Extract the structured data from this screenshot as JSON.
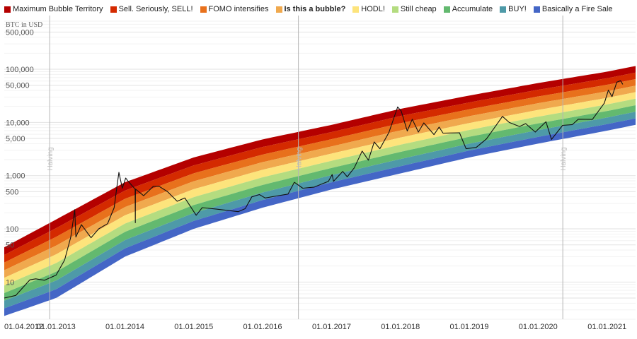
{
  "chart_data": {
    "type": "area",
    "ylabel": "BTC in USD",
    "y_scale": "log",
    "ylim": [
      2,
      800000
    ],
    "xlim": [
      "2012-04-01",
      "2021-06-01"
    ],
    "grid": true,
    "legend_position": "top",
    "bold_legend_entry": "Is this a bubble?",
    "y_ticks": [
      {
        "value": 500000,
        "label": "500,000"
      },
      {
        "value": 100000,
        "label": "100,000"
      },
      {
        "value": 50000,
        "label": "50,000"
      },
      {
        "value": 10000,
        "label": "10,000"
      },
      {
        "value": 5000,
        "label": "5,000"
      },
      {
        "value": 1000,
        "label": "1,000"
      },
      {
        "value": 500,
        "label": "500"
      },
      {
        "value": 100,
        "label": "100"
      },
      {
        "value": 50,
        "label": "50"
      },
      {
        "value": 10,
        "label": "10"
      }
    ],
    "x_ticks": [
      {
        "date": "2012-04-01",
        "label": "01.04.2012"
      },
      {
        "date": "2013-01-01",
        "label": "01.01.2013"
      },
      {
        "date": "2014-01-01",
        "label": "01.01.2014"
      },
      {
        "date": "2015-01-01",
        "label": "01.01.2015"
      },
      {
        "date": "2016-01-01",
        "label": "01.01.2016"
      },
      {
        "date": "2017-01-01",
        "label": "01.01.2017"
      },
      {
        "date": "2018-01-01",
        "label": "01.01.2018"
      },
      {
        "date": "2019-01-01",
        "label": "01.01.2019"
      },
      {
        "date": "2020-01-01",
        "label": "01.01.2020"
      },
      {
        "date": "2021-01-01",
        "label": "01.01.2021"
      }
    ],
    "halvings": [
      {
        "date": "2012-11-28",
        "label": "Halving"
      },
      {
        "date": "2016-07-09",
        "label": "Halving"
      },
      {
        "date": "2020-05-11",
        "label": "Halving"
      }
    ],
    "bands": [
      {
        "name": "Maximum Bubble Territory",
        "color": "#b40000"
      },
      {
        "name": "Sell. Seriously, SELL!",
        "color": "#d42a00"
      },
      {
        "name": "FOMO intensifies",
        "color": "#e8711c"
      },
      {
        "name": "Is this a bubble?",
        "color": "#f0a94e"
      },
      {
        "name": "HODL!",
        "color": "#fde47c"
      },
      {
        "name": "Still cheap",
        "color": "#b4dc80"
      },
      {
        "name": "Accumulate",
        "color": "#63b96f"
      },
      {
        "name": "BUY!",
        "color": "#4e9aa8"
      },
      {
        "name": "Basically a Fire Sale",
        "color": "#4466c6"
      }
    ],
    "band_bottom": [
      [
        "2012-04-01",
        2.3
      ],
      [
        "2013-01-01",
        5
      ],
      [
        "2014-01-01",
        30
      ],
      [
        "2015-01-01",
        100
      ],
      [
        "2016-01-01",
        250
      ],
      [
        "2017-01-01",
        550
      ],
      [
        "2018-01-01",
        1100
      ],
      [
        "2019-01-01",
        2200
      ],
      [
        "2020-01-01",
        4000
      ],
      [
        "2021-01-01",
        7000
      ],
      [
        "2021-06-01",
        9000
      ]
    ],
    "band_top": [
      [
        "2012-04-01",
        45
      ],
      [
        "2013-01-01",
        150
      ],
      [
        "2014-01-01",
        750
      ],
      [
        "2015-01-01",
        2200
      ],
      [
        "2016-01-01",
        4800
      ],
      [
        "2017-01-01",
        9000
      ],
      [
        "2018-01-01",
        18000
      ],
      [
        "2019-01-01",
        32000
      ],
      [
        "2020-01-01",
        55000
      ],
      [
        "2021-01-01",
        90000
      ],
      [
        "2021-06-01",
        115000
      ]
    ],
    "series": [
      {
        "name": "BTC",
        "color": "#111111",
        "points": [
          [
            "2012-04-01",
            5
          ],
          [
            "2012-06-01",
            5.6
          ],
          [
            "2012-08-15",
            11
          ],
          [
            "2012-09-15",
            11.5
          ],
          [
            "2012-11-01",
            10.8
          ],
          [
            "2013-01-01",
            13.5
          ],
          [
            "2013-02-15",
            26
          ],
          [
            "2013-03-20",
            70
          ],
          [
            "2013-04-10",
            230
          ],
          [
            "2013-04-16",
            70
          ],
          [
            "2013-05-15",
            120
          ],
          [
            "2013-07-05",
            68
          ],
          [
            "2013-08-15",
            100
          ],
          [
            "2013-10-01",
            125
          ],
          [
            "2013-11-05",
            250
          ],
          [
            "2013-11-20",
            640
          ],
          [
            "2013-11-30",
            1150
          ],
          [
            "2013-12-18",
            580
          ],
          [
            "2014-01-05",
            900
          ],
          [
            "2014-01-15",
            810
          ],
          [
            "2014-02-24",
            560
          ],
          [
            "2014-02-25",
            130
          ],
          [
            "2014-02-26",
            560
          ],
          [
            "2014-04-10",
            420
          ],
          [
            "2014-06-01",
            630
          ],
          [
            "2014-07-01",
            630
          ],
          [
            "2014-08-15",
            500
          ],
          [
            "2014-10-05",
            330
          ],
          [
            "2014-11-15",
            380
          ],
          [
            "2015-01-14",
            180
          ],
          [
            "2015-02-15",
            250
          ],
          [
            "2015-05-01",
            235
          ],
          [
            "2015-08-25",
            210
          ],
          [
            "2015-10-01",
            240
          ],
          [
            "2015-11-05",
            400
          ],
          [
            "2015-12-15",
            440
          ],
          [
            "2016-01-15",
            380
          ],
          [
            "2016-03-15",
            415
          ],
          [
            "2016-05-15",
            450
          ],
          [
            "2016-06-17",
            750
          ],
          [
            "2016-08-01",
            580
          ],
          [
            "2016-10-01",
            610
          ],
          [
            "2016-12-15",
            780
          ],
          [
            "2017-01-04",
            1050
          ],
          [
            "2017-01-11",
            780
          ],
          [
            "2017-03-01",
            1200
          ],
          [
            "2017-03-25",
            950
          ],
          [
            "2017-05-01",
            1400
          ],
          [
            "2017-06-12",
            2900
          ],
          [
            "2017-07-15",
            1950
          ],
          [
            "2017-08-15",
            4300
          ],
          [
            "2017-09-14",
            3200
          ],
          [
            "2017-11-01",
            6500
          ],
          [
            "2017-12-17",
            19500
          ],
          [
            "2018-01-05",
            16500
          ],
          [
            "2018-02-06",
            6900
          ],
          [
            "2018-03-05",
            11500
          ],
          [
            "2018-04-06",
            6600
          ],
          [
            "2018-05-05",
            9800
          ],
          [
            "2018-06-28",
            5900
          ],
          [
            "2018-07-25",
            8200
          ],
          [
            "2018-08-15",
            6300
          ],
          [
            "2018-11-10",
            6400
          ],
          [
            "2018-12-15",
            3200
          ],
          [
            "2019-02-07",
            3400
          ],
          [
            "2019-04-02",
            4900
          ],
          [
            "2019-05-15",
            8000
          ],
          [
            "2019-06-26",
            13000
          ],
          [
            "2019-08-01",
            10000
          ],
          [
            "2019-09-25",
            8400
          ],
          [
            "2019-10-27",
            9500
          ],
          [
            "2019-12-17",
            6600
          ],
          [
            "2020-02-12",
            10300
          ],
          [
            "2020-03-12",
            4800
          ],
          [
            "2020-05-10",
            8800
          ],
          [
            "2020-07-01",
            9100
          ],
          [
            "2020-08-01",
            11500
          ],
          [
            "2020-10-15",
            11400
          ],
          [
            "2020-12-17",
            23000
          ],
          [
            "2021-01-08",
            40500
          ],
          [
            "2021-01-27",
            30500
          ],
          [
            "2021-02-21",
            57000
          ],
          [
            "2021-03-13",
            61000
          ],
          [
            "2021-03-25",
            52000
          ]
        ]
      }
    ]
  }
}
